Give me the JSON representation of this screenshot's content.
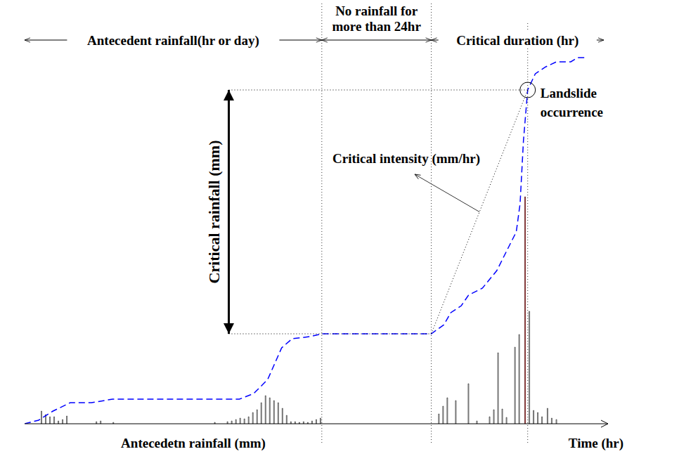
{
  "chart_data": {
    "type": "bar",
    "xlim": [
      0,
      138
    ],
    "ylim": [
      0,
      115
    ],
    "xticks": [],
    "yticks": [],
    "tick_labels": false,
    "grid": false,
    "x_label": "Time (hr)",
    "series": [
      {
        "type": "bar",
        "x": [
          4,
          5,
          6,
          7,
          8,
          9,
          10,
          17,
          18,
          21,
          45,
          48,
          49,
          50,
          51,
          52,
          53,
          54,
          55,
          56,
          57,
          58,
          59,
          60,
          61,
          62,
          63,
          64,
          65,
          66,
          67,
          68,
          69,
          70,
          98,
          99,
          100,
          102,
          105,
          107,
          110,
          111,
          112,
          113,
          114,
          116,
          117,
          118.4,
          119.4,
          120.4,
          121.4,
          122.4,
          123.7,
          124.7,
          125.8
        ],
        "values": [
          3.6,
          2.6,
          2,
          2,
          0.8,
          1.2,
          2.2,
          0.6,
          0.8,
          0.4,
          0.4,
          0.6,
          0.8,
          1.2,
          1.6,
          1.4,
          2,
          3.2,
          4,
          6,
          8,
          7.4,
          6.6,
          6,
          4.4,
          2.4,
          0.6,
          0.6,
          0.4,
          0.6,
          0.4,
          0.8,
          1.2,
          1.6,
          2.8,
          5,
          7.4,
          6.6,
          11.4,
          0.8,
          2,
          4,
          20.2,
          4.2,
          1.8,
          21.8,
          25.4,
          64.6,
          32,
          3.8,
          3.2,
          2,
          4.4,
          1.6,
          1.2
        ],
        "colors": [
          "#cccccc",
          "#cccccc",
          "#cccccc",
          "#cccccc",
          "#cccccc",
          "#cccccc",
          "#cccccc",
          "#cccccc",
          "#cccccc",
          "#cccccc",
          "#cccccc",
          "#cccccc",
          "#cccccc",
          "#cccccc",
          "#cccccc",
          "#cccccc",
          "#cccccc",
          "#cccccc",
          "#cccccc",
          "#cccccc",
          "#cccccc",
          "#cccccc",
          "#cccccc",
          "#cccccc",
          "#cccccc",
          "#cccccc",
          "#cccccc",
          "#cccccc",
          "#cccccc",
          "#cccccc",
          "#cccccc",
          "#cccccc",
          "#cccccc",
          "#cccccc",
          "#cccccc",
          "#cccccc",
          "#cccccc",
          "#cccccc",
          "#cccccc",
          "#cccccc",
          "#cccccc",
          "#cccccc",
          "#cccccc",
          "#cccccc",
          "#cccccc",
          "#cccccc",
          "#cccccc",
          "#ff0000",
          "#cccccc",
          "#cccccc",
          "#cccccc",
          "#cccccc",
          "#cccccc",
          "#cccccc",
          "#cccccc"
        ]
      },
      {
        "type": "line",
        "line_style": "dashed",
        "color": "#0000ff",
        "x": [
          0,
          3.3,
          6.7,
          10.8,
          15.8,
          20.8,
          50.8,
          54.2,
          57.5,
          60.8,
          63.3,
          67.5,
          70.3,
          96.2,
          99.2,
          100.8,
          103.3,
          105,
          108.3,
          111.7,
          114.2,
          116.3,
          117.2,
          118,
          119,
          120.8,
          123.3,
          125.8,
          129.2,
          130.8,
          132.5
        ],
        "values": [
          0,
          1,
          3.6,
          6,
          6,
          7,
          7,
          8.6,
          12.6,
          21.6,
          24.2,
          24.8,
          25.6,
          25.6,
          28.2,
          31.6,
          33.6,
          36.6,
          38.6,
          43.6,
          49.6,
          54.6,
          62.6,
          80.6,
          95,
          99.6,
          101.6,
          103,
          103,
          104.2,
          104.2
        ]
      }
    ],
    "annotations": {
      "periods": [
        {
          "label": "Antecedent rainfall(hr or day)",
          "from": 0,
          "to": 70.3
        },
        {
          "label": [
            "No rainfall for",
            "more than 24hr"
          ],
          "from": 70.3,
          "to": 96.2
        },
        {
          "label": "Critical duration (hr)",
          "from": 96.2,
          "to": 137
        }
      ],
      "antecedent_rainfall_label": "Antecedetn rainfall (mm)",
      "critical_rainfall": {
        "label": "Critical rainfall (mm)",
        "x": 48.3,
        "from": 25.6,
        "to": 95
      },
      "critical_intensity": {
        "label": "Critical intensity (mm/hr)",
        "from": {
          "x": 96.2,
          "y": 25.6
        },
        "to": {
          "x": 119,
          "y": 95
        }
      },
      "landslide": {
        "label": [
          "Landslide",
          "occurrence"
        ],
        "x": 119,
        "y": 95
      }
    }
  }
}
